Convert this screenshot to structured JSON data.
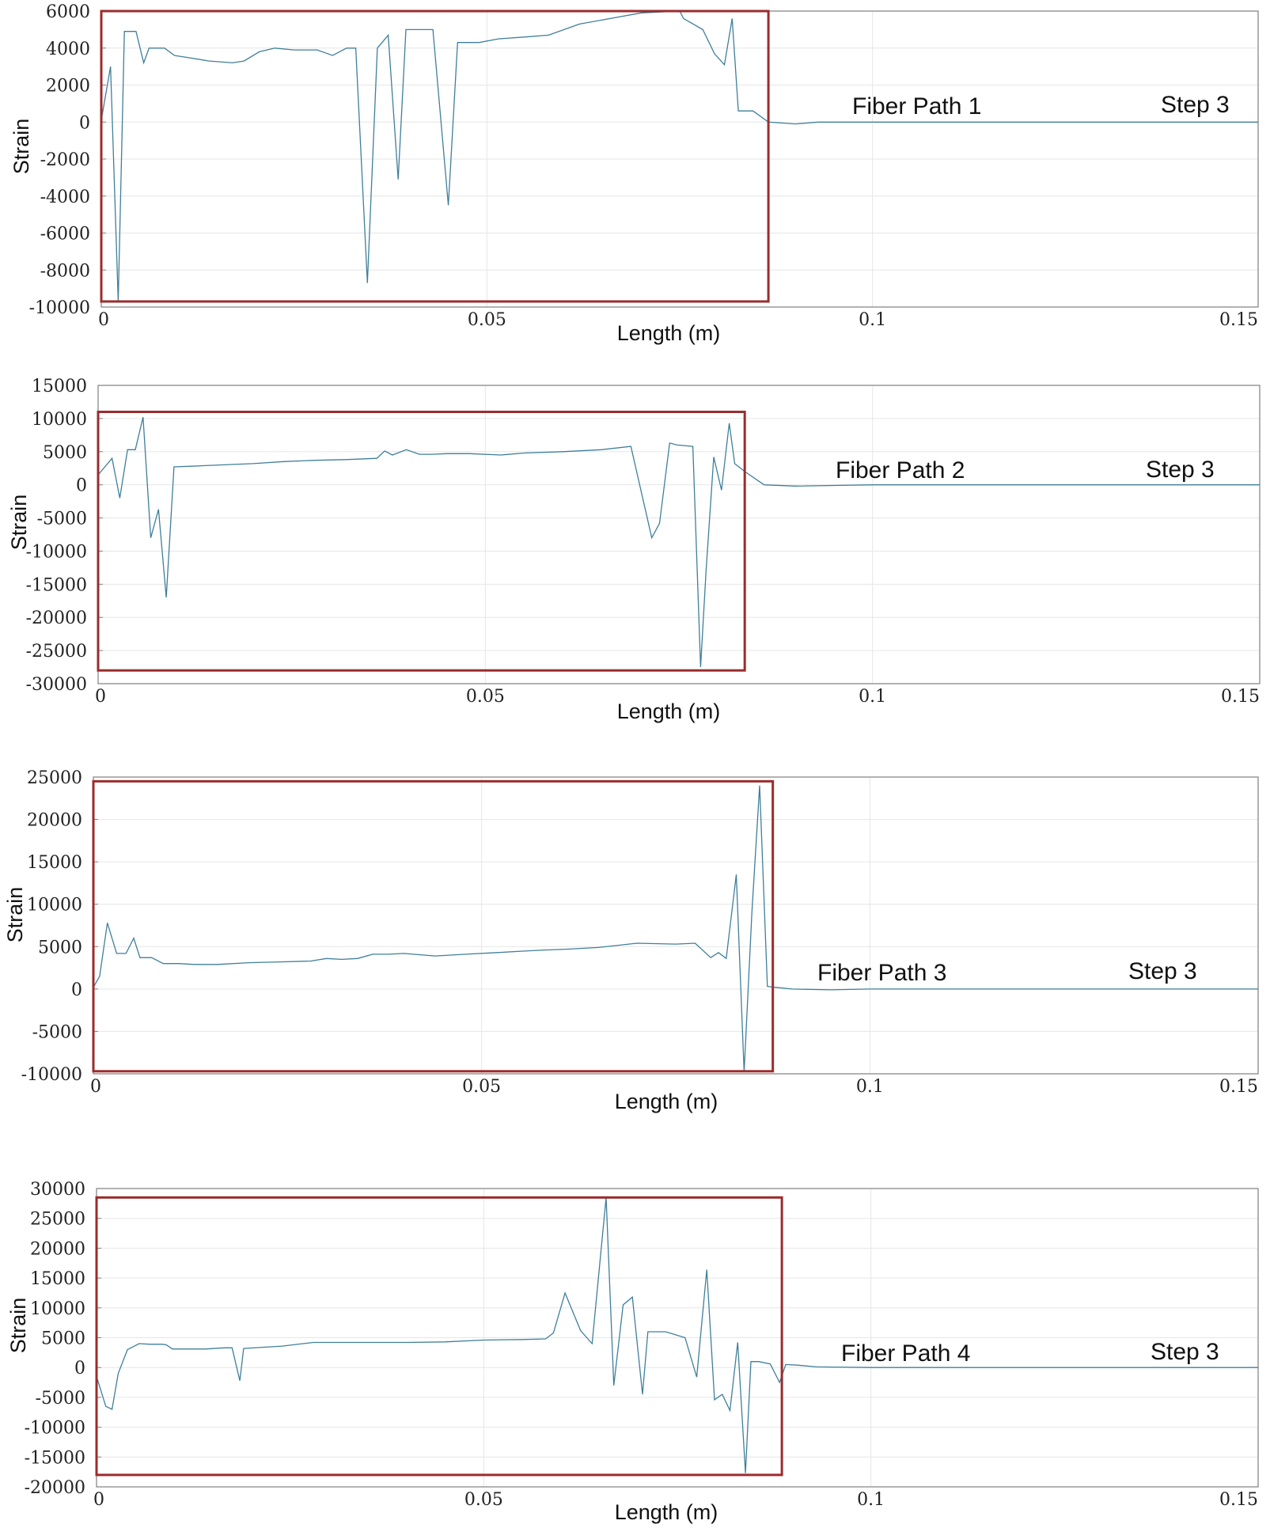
{
  "chart_data": [
    {
      "type": "line",
      "title": "",
      "xlabel": "Length (m)",
      "ylabel": "Strain",
      "xlim": [
        0,
        0.15
      ],
      "ylim": [
        -10000,
        6000
      ],
      "xticks": [
        0,
        0.05,
        0.1,
        0.15
      ],
      "xtick_labels": [
        "0",
        "0.05",
        "0.1",
        "0.15"
      ],
      "yticks": [
        6000,
        4000,
        2000,
        0,
        -2000,
        -4000,
        -6000,
        -8000,
        -10000
      ],
      "ytick_labels": [
        "6000",
        "4000",
        "2000",
        "0",
        "-2000",
        "-4000",
        "-6000",
        "-8000",
        "-10000"
      ],
      "annotations": [
        "Fiber Path 1",
        "Step 3"
      ],
      "highlight_region": {
        "x": [
          0,
          0.0865
        ],
        "y": [
          -9700,
          6000
        ]
      },
      "series": [
        {
          "name": "Fiber Path 1",
          "x": [
            0,
            0.0012,
            0.0022,
            0.003,
            0.0035,
            0.0045,
            0.0055,
            0.0062,
            0.0072,
            0.0082,
            0.0095,
            0.011,
            0.014,
            0.017,
            0.0185,
            0.0205,
            0.0225,
            0.025,
            0.028,
            0.03,
            0.0318,
            0.033,
            0.0345,
            0.0358,
            0.0372,
            0.0385,
            0.0395,
            0.0412,
            0.043,
            0.045,
            0.0462,
            0.0472,
            0.049,
            0.0515,
            0.055,
            0.058,
            0.062,
            0.066,
            0.07,
            0.075,
            0.0755,
            0.078,
            0.0795,
            0.0808,
            0.0818,
            0.0826,
            0.0835,
            0.0845,
            0.0865,
            0.09,
            0.093,
            0.1,
            0.15
          ],
          "y": [
            100,
            3000,
            -9700,
            4900,
            4900,
            4900,
            3200,
            4000,
            4000,
            4000,
            3600,
            3500,
            3300,
            3200,
            3300,
            3800,
            4000,
            3900,
            3900,
            3600,
            4000,
            4000,
            -8700,
            4000,
            4700,
            -3100,
            5000,
            5000,
            5000,
            -4500,
            4300,
            4300,
            4300,
            4500,
            4600,
            4700,
            5300,
            5600,
            5900,
            6000,
            5600,
            5000,
            3700,
            3100,
            5600,
            600,
            600,
            600,
            0,
            -100,
            0,
            0,
            0
          ]
        }
      ]
    },
    {
      "type": "line",
      "title": "",
      "xlabel": "Length (m)",
      "ylabel": "Strain",
      "xlim": [
        0,
        0.15
      ],
      "ylim": [
        -30000,
        15000
      ],
      "xticks": [
        0,
        0.05,
        0.1,
        0.15
      ],
      "xtick_labels": [
        "0",
        "0.05",
        "0.1",
        "0.15"
      ],
      "yticks": [
        15000,
        10000,
        5000,
        0,
        -5000,
        -10000,
        -15000,
        -20000,
        -25000,
        -30000
      ],
      "ytick_labels": [
        "15000",
        "10000",
        "5000",
        "0",
        "-5000",
        "-10000",
        "-15000",
        "-20000",
        "-25000",
        "-30000"
      ],
      "annotations": [
        "Fiber Path 2",
        "Step 3"
      ],
      "highlight_region": {
        "x": [
          0,
          0.0835
        ],
        "y": [
          -28000,
          11000
        ]
      },
      "series": [
        {
          "name": "Fiber Path 2",
          "x": [
            0,
            0.0018,
            0.0028,
            0.0038,
            0.0048,
            0.0058,
            0.0068,
            0.0078,
            0.0088,
            0.0098,
            0.012,
            0.016,
            0.02,
            0.024,
            0.028,
            0.032,
            0.036,
            0.037,
            0.038,
            0.0398,
            0.0415,
            0.043,
            0.045,
            0.048,
            0.052,
            0.055,
            0.06,
            0.065,
            0.0688,
            0.0715,
            0.0725,
            0.0738,
            0.0748,
            0.0768,
            0.0778,
            0.0785,
            0.0795,
            0.0805,
            0.0815,
            0.0822,
            0.0835,
            0.086,
            0.09,
            0.1,
            0.15
          ],
          "y": [
            1500,
            4000,
            -2000,
            5300,
            5300,
            10200,
            -8000,
            -3700,
            -17000,
            2700,
            2800,
            3000,
            3200,
            3500,
            3700,
            3800,
            4000,
            5100,
            4500,
            5300,
            4600,
            4600,
            4700,
            4700,
            4500,
            4800,
            5000,
            5300,
            5800,
            -8000,
            -5800,
            6300,
            6000,
            5800,
            -27500,
            -13000,
            4200,
            -800,
            9300,
            3200,
            2000,
            0,
            -200,
            0,
            0
          ]
        }
      ]
    },
    {
      "type": "line",
      "title": "",
      "xlabel": "Length (m)",
      "ylabel": "Strain",
      "xlim": [
        0,
        0.15
      ],
      "ylim": [
        -10000,
        25000
      ],
      "xticks": [
        0,
        0.05,
        0.1,
        0.15
      ],
      "xtick_labels": [
        "0",
        "0.05",
        "0.1",
        "0.15"
      ],
      "yticks": [
        25000,
        20000,
        15000,
        10000,
        5000,
        0,
        -5000,
        -10000
      ],
      "ytick_labels": [
        "25000",
        "20000",
        "15000",
        "10000",
        "5000",
        "0",
        "-5000",
        "-10000"
      ],
      "annotations": [
        "Fiber Path 3",
        "Step 3"
      ],
      "highlight_region": {
        "x": [
          0,
          0.0875
        ],
        "y": [
          -9700,
          24500
        ]
      },
      "series": [
        {
          "name": "Fiber Path 3",
          "x": [
            0,
            0.0008,
            0.0018,
            0.003,
            0.0042,
            0.0052,
            0.006,
            0.0075,
            0.009,
            0.011,
            0.013,
            0.016,
            0.02,
            0.024,
            0.028,
            0.03,
            0.032,
            0.034,
            0.036,
            0.038,
            0.04,
            0.044,
            0.048,
            0.052,
            0.056,
            0.058,
            0.061,
            0.065,
            0.07,
            0.075,
            0.0775,
            0.0795,
            0.0805,
            0.0815,
            0.0828,
            0.0838,
            0.0848,
            0.0858,
            0.0868,
            0.0878,
            0.09,
            0.095,
            0.1,
            0.15
          ],
          "y": [
            200,
            1500,
            7800,
            4200,
            4200,
            6000,
            3700,
            3700,
            3000,
            3000,
            2900,
            2900,
            3100,
            3200,
            3300,
            3600,
            3500,
            3600,
            4100,
            4100,
            4200,
            3900,
            4100,
            4300,
            4500,
            4600,
            4700,
            4900,
            5400,
            5300,
            5400,
            3700,
            4300,
            3600,
            13500,
            -9800,
            9000,
            24000,
            300,
            200,
            0,
            -100,
            0,
            0
          ]
        }
      ]
    },
    {
      "type": "line",
      "title": "",
      "xlabel": "Length (m)",
      "ylabel": "Strain",
      "xlim": [
        0,
        0.15
      ],
      "ylim": [
        -20000,
        30000
      ],
      "xticks": [
        0,
        0.05,
        0.1,
        0.15
      ],
      "xtick_labels": [
        "0",
        "0.05",
        "0.1",
        "0.15"
      ],
      "yticks": [
        30000,
        25000,
        20000,
        15000,
        10000,
        5000,
        0,
        -5000,
        -10000,
        -15000,
        -20000
      ],
      "ytick_labels": [
        "30000",
        "25000",
        "20000",
        "15000",
        "10000",
        "5000",
        "0",
        "-5000",
        "-10000",
        "-15000",
        "-20000"
      ],
      "annotations": [
        "Fiber Path 4",
        "Step 3"
      ],
      "highlight_region": {
        "x": [
          0,
          0.0885
        ],
        "y": [
          -18000,
          28500
        ]
      },
      "series": [
        {
          "name": "Fiber Path 4",
          "x": [
            0,
            0.0012,
            0.002,
            0.0028,
            0.004,
            0.0055,
            0.007,
            0.0085,
            0.009,
            0.0098,
            0.012,
            0.014,
            0.0165,
            0.0175,
            0.0185,
            0.019,
            0.024,
            0.028,
            0.032,
            0.036,
            0.04,
            0.045,
            0.05,
            0.055,
            0.058,
            0.059,
            0.0605,
            0.0625,
            0.064,
            0.0658,
            0.0668,
            0.068,
            0.0692,
            0.0705,
            0.0712,
            0.0735,
            0.076,
            0.0775,
            0.0788,
            0.0798,
            0.0808,
            0.0818,
            0.0828,
            0.0838,
            0.0845,
            0.0855,
            0.087,
            0.0882,
            0.089,
            0.0905,
            0.093,
            0.1,
            0.15
          ],
          "y": [
            -1500,
            -6500,
            -7000,
            -1000,
            3000,
            4000,
            3900,
            3900,
            3800,
            3100,
            3100,
            3100,
            3300,
            3300,
            -2200,
            3200,
            3600,
            4200,
            4200,
            4200,
            4200,
            4300,
            4600,
            4700,
            4800,
            5800,
            12500,
            6200,
            4000,
            28500,
            -3000,
            10500,
            11800,
            -4500,
            6000,
            6000,
            5000,
            -1600,
            16400,
            -5400,
            -4500,
            -7200,
            4200,
            -17700,
            1000,
            1000,
            600,
            -2500,
            500,
            400,
            100,
            0,
            0
          ]
        }
      ]
    }
  ]
}
